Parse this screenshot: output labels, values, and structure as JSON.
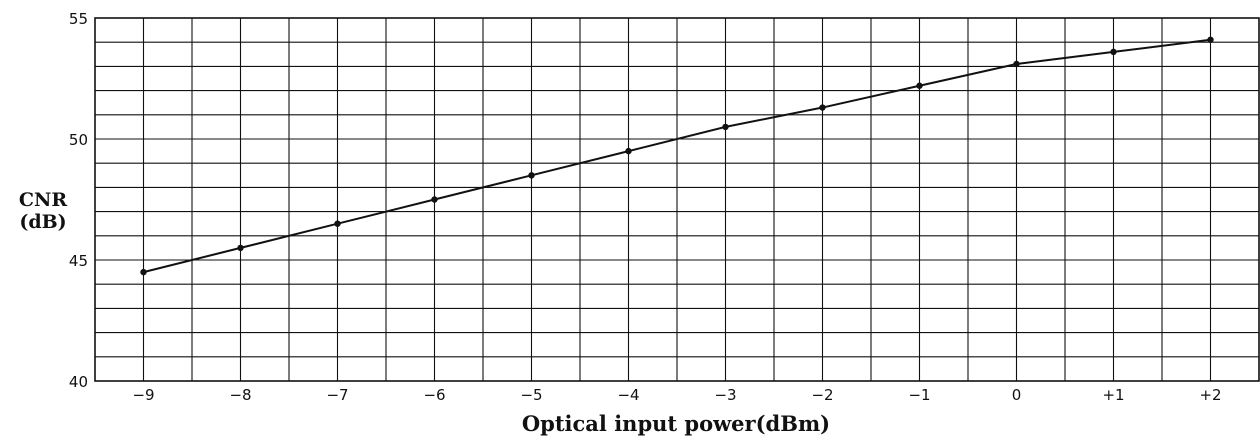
{
  "chart_data": {
    "type": "line",
    "xlabel": "Optical input power(dBm)",
    "ylabel_line1": "CNR",
    "ylabel_line2": "(dB)",
    "x_tick_labels": [
      "−9",
      "−8",
      "−7",
      "−6",
      "−5",
      "−4",
      "−3",
      "−2",
      "−1",
      "0",
      "+1",
      "+2"
    ],
    "x": [
      -9,
      -8,
      -7,
      -6,
      -5,
      -4,
      -3,
      -2,
      -1,
      0,
      1,
      2
    ],
    "xlim": [
      -9.5,
      2.5
    ],
    "y_tick_labels": [
      "40",
      "45",
      "50",
      "55"
    ],
    "y_ticks": [
      40,
      45,
      50,
      55
    ],
    "ylim": [
      40,
      55
    ],
    "grid": true,
    "legend": false,
    "series": [
      {
        "values": [
          44.5,
          45.5,
          46.5,
          47.5,
          48.5,
          49.5,
          50.5,
          51.3,
          52.2,
          53.1,
          53.6,
          54.1
        ]
      }
    ],
    "colors": {
      "line": "#111111",
      "grid": "#111111",
      "background": "#ffffff"
    }
  }
}
